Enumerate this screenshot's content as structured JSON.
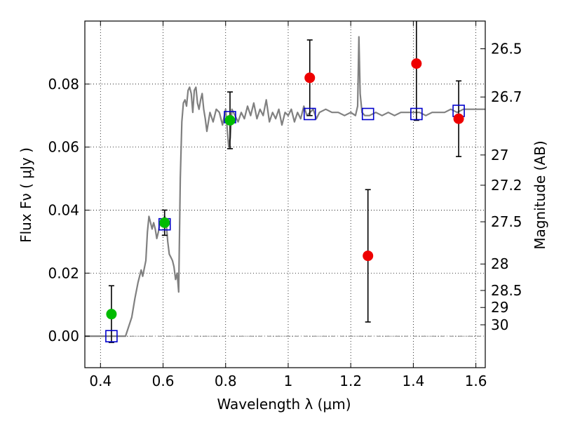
{
  "chart_data": {
    "type": "scatter",
    "xlabel": "Wavelength  λ (μm)",
    "ylabel": "Flux  Fν  ( μJy )",
    "y2label": "Magnitude (AB)",
    "xlim": [
      0.35,
      1.63
    ],
    "ylim": [
      -0.01,
      0.1
    ],
    "grid": true,
    "x_ticks": [
      0.4,
      0.6,
      0.8,
      1.0,
      1.2,
      1.4,
      1.6
    ],
    "x_tick_labels": [
      "0.4",
      "0.6",
      "0.8",
      "1",
      "1.2",
      "1.4",
      "1.6"
    ],
    "y_ticks": [
      0.0,
      0.02,
      0.04,
      0.06,
      0.08
    ],
    "y_tick_labels": [
      "0.00",
      "0.02",
      "0.04",
      "0.06",
      "0.08"
    ],
    "mag_ticks": [
      {
        "label": "26.5",
        "flux": 0.0912
      },
      {
        "label": "26.7",
        "flux": 0.0759
      },
      {
        "label": "27",
        "flux": 0.0575
      },
      {
        "label": "27.2",
        "flux": 0.0479
      },
      {
        "label": "27.5",
        "flux": 0.0363
      },
      {
        "label": "28",
        "flux": 0.0229
      },
      {
        "label": "28.5",
        "flux": 0.0145
      },
      {
        "label": "29",
        "flux": 0.0091
      },
      {
        "label": "30",
        "flux": 0.0036
      }
    ],
    "zero_line": 0.0,
    "colors": {
      "template": "#808080",
      "model": "#0000cc",
      "green": "#00bb00",
      "red": "#ee0000",
      "errorbar": "#000000",
      "grid": "#000000"
    },
    "template_spectrum": {
      "x": [
        0.35,
        0.48,
        0.5,
        0.51,
        0.52,
        0.53,
        0.535,
        0.545,
        0.55,
        0.555,
        0.56,
        0.565,
        0.57,
        0.575,
        0.58,
        0.585,
        0.59,
        0.595,
        0.6,
        0.605,
        0.61,
        0.615,
        0.62,
        0.625,
        0.63,
        0.635,
        0.64,
        0.645,
        0.65,
        0.655,
        0.66,
        0.665,
        0.67,
        0.675,
        0.68,
        0.685,
        0.69,
        0.695,
        0.7,
        0.705,
        0.71,
        0.715,
        0.72,
        0.725,
        0.73,
        0.735,
        0.74,
        0.75,
        0.76,
        0.77,
        0.78,
        0.79,
        0.8,
        0.81,
        0.815,
        0.82,
        0.83,
        0.84,
        0.85,
        0.86,
        0.87,
        0.88,
        0.89,
        0.9,
        0.91,
        0.92,
        0.93,
        0.94,
        0.95,
        0.96,
        0.97,
        0.98,
        0.99,
        1.0,
        1.01,
        1.02,
        1.03,
        1.04,
        1.05,
        1.06,
        1.07,
        1.08,
        1.09,
        1.1,
        1.12,
        1.14,
        1.16,
        1.18,
        1.2,
        1.215,
        1.222,
        1.226,
        1.23,
        1.236,
        1.245,
        1.26,
        1.28,
        1.3,
        1.32,
        1.34,
        1.36,
        1.38,
        1.4,
        1.42,
        1.44,
        1.46,
        1.48,
        1.5,
        1.52,
        1.54,
        1.56,
        1.58,
        1.6,
        1.63
      ],
      "y": [
        0.0,
        0.0,
        0.006,
        0.012,
        0.017,
        0.021,
        0.019,
        0.024,
        0.033,
        0.038,
        0.036,
        0.034,
        0.036,
        0.034,
        0.031,
        0.033,
        0.036,
        0.035,
        0.037,
        0.038,
        0.036,
        0.03,
        0.026,
        0.025,
        0.024,
        0.022,
        0.018,
        0.02,
        0.014,
        0.05,
        0.068,
        0.074,
        0.075,
        0.073,
        0.078,
        0.079,
        0.077,
        0.071,
        0.078,
        0.079,
        0.074,
        0.072,
        0.075,
        0.077,
        0.072,
        0.069,
        0.065,
        0.071,
        0.068,
        0.072,
        0.071,
        0.067,
        0.072,
        0.06,
        0.063,
        0.072,
        0.07,
        0.068,
        0.071,
        0.069,
        0.073,
        0.07,
        0.074,
        0.069,
        0.072,
        0.07,
        0.075,
        0.068,
        0.071,
        0.069,
        0.072,
        0.067,
        0.071,
        0.07,
        0.072,
        0.068,
        0.071,
        0.069,
        0.073,
        0.07,
        0.071,
        0.072,
        0.069,
        0.071,
        0.072,
        0.071,
        0.071,
        0.07,
        0.071,
        0.07,
        0.073,
        0.095,
        0.077,
        0.071,
        0.07,
        0.07,
        0.071,
        0.07,
        0.071,
        0.07,
        0.071,
        0.071,
        0.071,
        0.071,
        0.07,
        0.071,
        0.071,
        0.071,
        0.072,
        0.071,
        0.072,
        0.072,
        0.072,
        0.072
      ]
    },
    "series": [
      {
        "marker": "open-square",
        "color": "#0000cc",
        "x": [
          0.435,
          0.605,
          0.814,
          1.069,
          1.255,
          1.41,
          1.545
        ],
        "y": [
          0.0,
          0.0355,
          0.0695,
          0.0705,
          0.0705,
          0.0705,
          0.0715
        ]
      },
      {
        "marker": "circle",
        "color": "#00bb00",
        "x": [
          0.435,
          0.605,
          0.814
        ],
        "y": [
          0.007,
          0.036,
          0.0685
        ],
        "yerr": [
          0.009,
          0.004,
          0.009
        ]
      },
      {
        "marker": "circle",
        "color": "#ee0000",
        "x": [
          1.069,
          1.255,
          1.41,
          1.545
        ],
        "y": [
          0.082,
          0.0255,
          0.0865,
          0.069
        ],
        "yerr": [
          0.012,
          0.021,
          0.018,
          0.012
        ]
      }
    ]
  }
}
